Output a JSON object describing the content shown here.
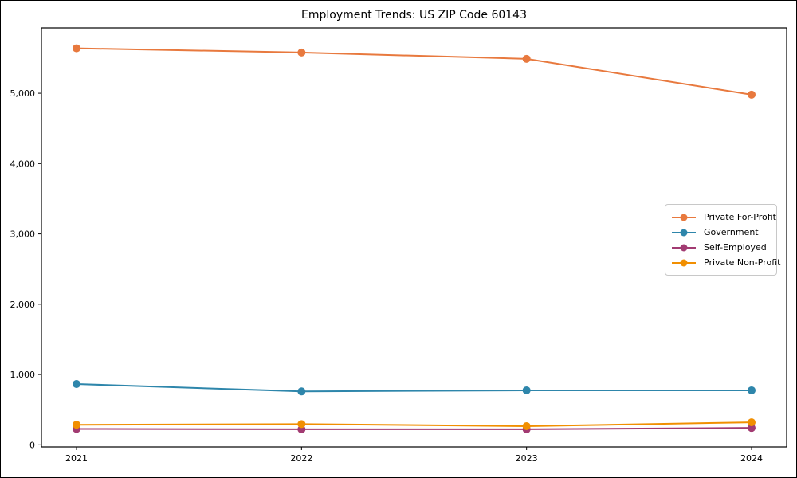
{
  "figure": {
    "title": "Employment Trends: US ZIP Code 60143"
  },
  "chart_data": {
    "type": "line",
    "title": "Employment Trends: US ZIP Code 60143",
    "xlabel": "",
    "ylabel": "",
    "categories": [
      "2021",
      "2022",
      "2023",
      "2024"
    ],
    "series": [
      {
        "name": "Private For-Profit",
        "color": "#E8793E",
        "values": [
          5640,
          5580,
          5490,
          4980
        ]
      },
      {
        "name": "Government",
        "color": "#2E86AB",
        "values": [
          865,
          760,
          775,
          775
        ]
      },
      {
        "name": "Self-Employed",
        "color": "#A23B72",
        "values": [
          225,
          220,
          220,
          240
        ]
      },
      {
        "name": "Private Non-Profit",
        "color": "#F18F01",
        "values": [
          285,
          295,
          265,
          320
        ]
      }
    ],
    "ylim": [
      -30,
      5930
    ],
    "yticks": [
      0,
      1000,
      2000,
      3000,
      4000,
      5000
    ],
    "ytick_labels": [
      "0",
      "1,000",
      "2,000",
      "3,000",
      "4,000",
      "5,000"
    ],
    "grid": false,
    "legend": {
      "position": "center-right",
      "entries": [
        "Private For-Profit",
        "Government",
        "Self-Employed",
        "Private Non-Profit"
      ]
    },
    "axis_color": "#000000",
    "marker": "circle",
    "line_width": 2
  }
}
